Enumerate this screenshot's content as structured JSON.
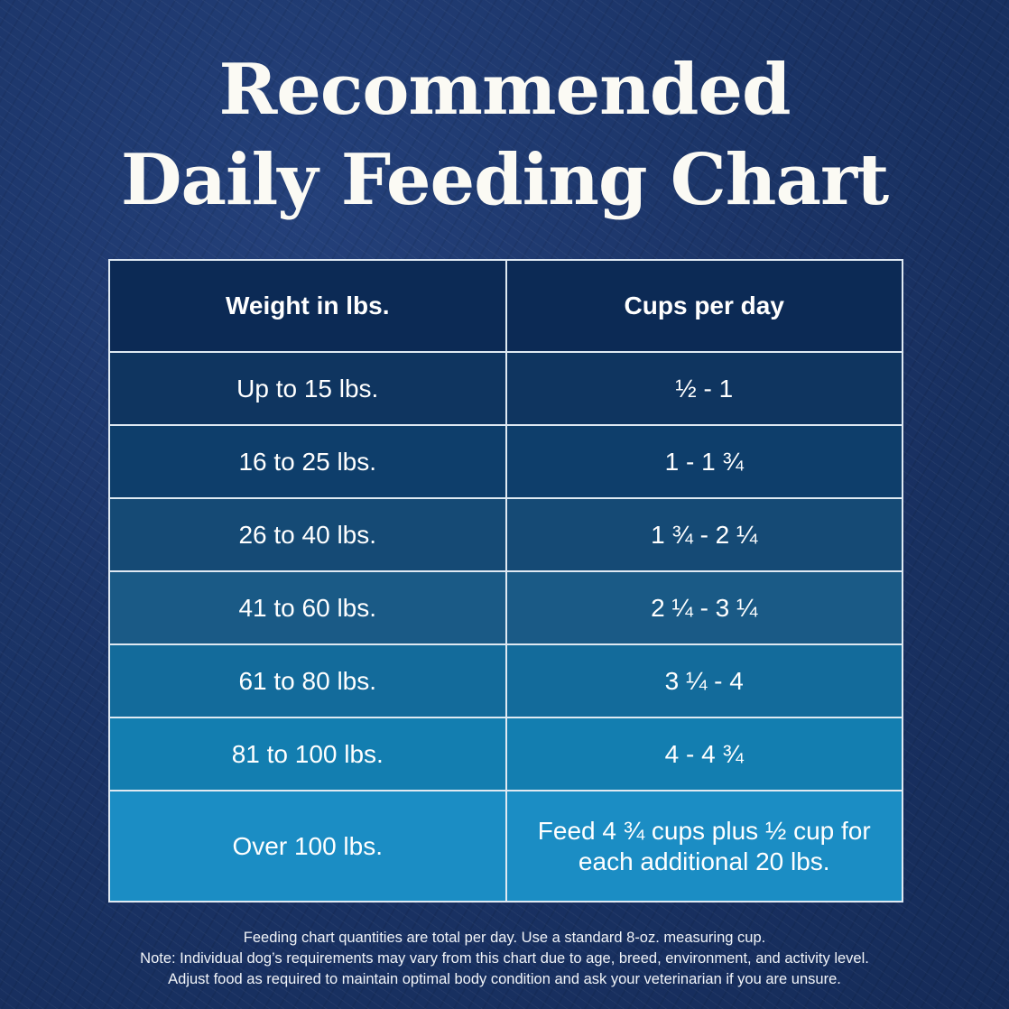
{
  "title": {
    "line1": "Recommended",
    "line2": "Daily Feeding Chart"
  },
  "chart_data": {
    "type": "table",
    "columns": [
      "Weight in lbs.",
      "Cups per day"
    ],
    "rows": [
      {
        "weight": "Up to 15 lbs.",
        "cups": "½ - 1",
        "color": "#0f3560"
      },
      {
        "weight": "16 to 25 lbs.",
        "cups": "1 - 1 ¾",
        "color": "#0e3e6b"
      },
      {
        "weight": "26 to 40 lbs.",
        "cups": "1 ¾ - 2 ¼",
        "color": "#154a75"
      },
      {
        "weight": "41 to 60 lbs.",
        "cups": "2 ¼ - 3 ¼",
        "color": "#1a5a86"
      },
      {
        "weight": "61 to 80 lbs.",
        "cups": "3 ¼ - 4",
        "color": "#136b9b"
      },
      {
        "weight": "81 to 100 lbs.",
        "cups": "4 - 4 ¾",
        "color": "#137eb0"
      },
      {
        "weight": "Over 100 lbs.",
        "cups": "Feed 4 ¾ cups plus ½ cup for each additional 20 lbs.",
        "color": "#1b8dc4"
      }
    ]
  },
  "footer": [
    "Feeding chart quantities are total per day. Use a standard 8-oz. measuring cup.",
    "Note: Individual dog’s requirements may vary from this chart due to age, breed, environment, and activity level.",
    "Adjust food as required to maintain optimal body condition and ask your veterinarian if you are unsure."
  ]
}
